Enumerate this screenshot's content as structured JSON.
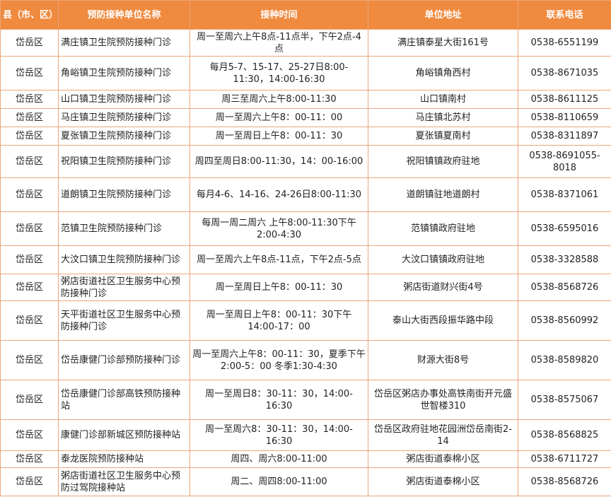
{
  "table": {
    "header": [
      "县（市、区）",
      "预防接种单位名称",
      "接种时间",
      "单位地址",
      "联系电话"
    ],
    "rows": [
      [
        "岱岳区",
        "满庄镇卫生院预防接种门诊",
        "周一至周六上午8点-11点半，下午2点-4点",
        "满庄镇泰星大街161号",
        "0538-6551199"
      ],
      [
        "岱岳区",
        "角峪镇卫生院预防接种门诊",
        "每月5-7、15-17、25-27日8:00-11:30，14:00-16:30",
        "角峪镇角西村",
        "0538-8671035"
      ],
      [
        "岱岳区",
        "山口镇卫生院预防接种门诊",
        "周三至周六上午8:00-11:30",
        "山口镇南村",
        "0538-8611125"
      ],
      [
        "岱岳区",
        "马庄镇卫生院预防接种门诊",
        "周一至周六上午8：00-11：00",
        "马庄镇北苏村",
        "0538-8110659"
      ],
      [
        "岱岳区",
        "夏张镇卫生院预防接种门诊",
        "周一至周日上午8：00-11：30",
        "夏张镇夏南村",
        "0538-8311897"
      ],
      [
        "岱岳区",
        "祝阳镇卫生院预防接种门诊",
        "周四至周日8:00-11:30，14：00-16:00",
        "祝阳镇镇政府驻地",
        "0538-8691055-8018"
      ],
      [
        "岱岳区",
        "道朗镇卫生院预防接种门诊",
        "每月4-6、14-16、24-26日8:00-11:30",
        "道朗镇驻地道朗村",
        "0538-8371061"
      ],
      [
        "岱岳区",
        "范镇卫生院预防接种门诊",
        "每周一周二周六 上午8:00-11:30下午2:00-4:30",
        "范镇镇政府驻地",
        "0538-6595016"
      ],
      [
        "岱岳区",
        "大汶口镇卫生院预防接种门诊",
        "周一至周六上午8点-11点，下午2点-5点",
        "大汶口镇镇政府驻地",
        "0538-3328588"
      ],
      [
        "岱岳区",
        "粥店街道社区卫生服务中心预防接种门诊",
        "周一至周日上午8：00-11：30",
        "粥店街道财兴街4号",
        "0538-8568726"
      ],
      [
        "岱岳区",
        "天平街道社区卫生服务中心预防接种门诊",
        "周一至周日上午8：00-11：30下午14:00-17：00",
        "泰山大街西段振华路中段",
        "0538-8560992"
      ],
      [
        "岱岳区",
        "岱岳康健门诊部预防接种门诊",
        "周一至周六上午8：00-11：30，夏季下午2:00-5：00 冬季1:30-4:30",
        "财源大街8号",
        "0538-8589820"
      ],
      [
        "岱岳区",
        "岱岳康健门诊部高铁预防接种站",
        "周一至周日8：30-11：30，14:00-16:30",
        "岱岳区粥店办事处高铁南街开元盛世智楼310",
        "0538-8575067"
      ],
      [
        "岱岳区",
        "康健门诊部新城区预防接种站",
        "周一至周六8：30-11：30，14:00-16:30",
        "岱岳区政府驻地花园洲岱岳南街2-14",
        "0538-8568825"
      ],
      [
        "岱岳区",
        "泰龙医院预防接种站",
        "周四、周六8:00-11:00",
        "粥店街道泰棉小区",
        "0538-6711727"
      ],
      [
        "岱岳区",
        "粥店街道社区卫生服务中心预防过驾院接种站",
        "周二、周四8:00-11:00",
        "粥店街道泰棉小区",
        "0538-8568726"
      ]
    ]
  }
}
